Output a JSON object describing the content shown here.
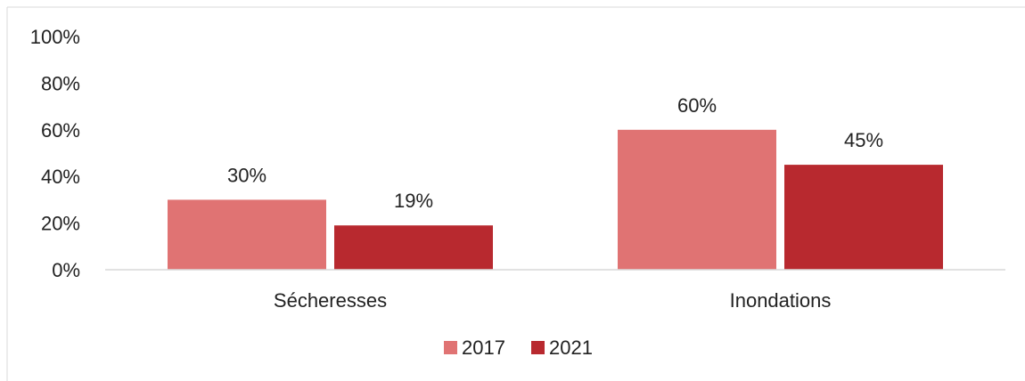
{
  "chart_data": {
    "type": "bar",
    "categories": [
      "Sécheresses",
      "Inondations"
    ],
    "series": [
      {
        "name": "2017",
        "values": [
          30,
          60
        ],
        "color": "#e07373"
      },
      {
        "name": "2021",
        "values": [
          19,
          45
        ],
        "color": "#b8292f"
      }
    ],
    "ylim": [
      0,
      100
    ],
    "yticks": [
      0,
      20,
      40,
      60,
      80,
      100
    ],
    "ytick_labels": [
      "0%",
      "20%",
      "40%",
      "60%",
      "80%",
      "100%"
    ],
    "data_labels": [
      [
        "30%",
        "60%"
      ],
      [
        "19%",
        "45%"
      ]
    ],
    "title": "",
    "xlabel": "",
    "ylabel": "",
    "grid": false,
    "legend_position": "bottom"
  }
}
